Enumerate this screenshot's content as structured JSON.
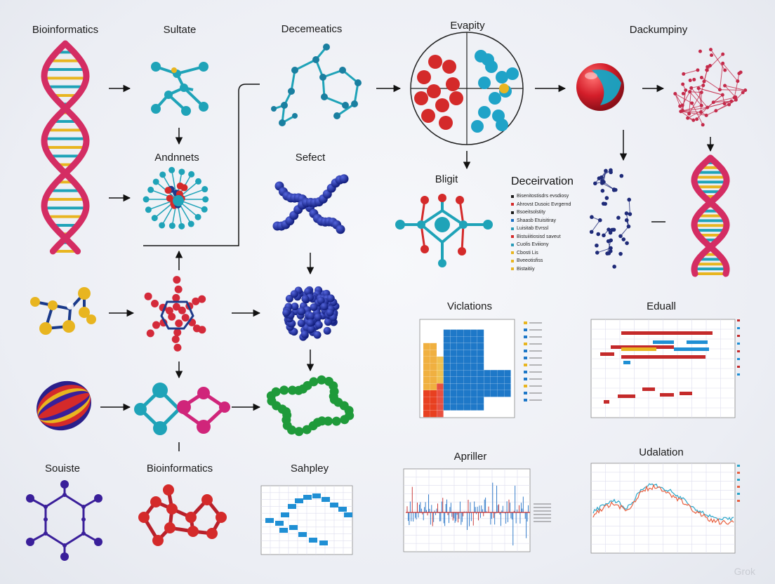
{
  "labels": {
    "bioinformatics_top": "Bioinformatics",
    "sultate": "Sultate",
    "decemeatics": "Decemeatics",
    "evapity": "Evapity",
    "dackumpiny": "Dackumpiny",
    "andnnets": "Andnnets",
    "sefect": "Sefect",
    "bligit": "Bligit",
    "souiste": "Souiste",
    "bioinformatics_bottom": "Bioinformatics",
    "sahpley": "Sahpley",
    "viclations": "Viclations",
    "eduall": "Eduall",
    "apriller": "Apriller",
    "udalation": "Udalation"
  },
  "legend": {
    "title": "Deceirvation",
    "items": [
      {
        "text": "Bisenitostisdrs evsdiosy",
        "color": "#1a1a1a"
      },
      {
        "text": "Ahrovst Dusoic Evrgernd",
        "color": "#d42a2a"
      },
      {
        "text": "Bsoeitsolstity",
        "color": "#1a1a1a"
      },
      {
        "text": "Shaasb Etuisitiray",
        "color": "#1a6fc4"
      },
      {
        "text": "Luisitab Evrssl",
        "color": "#2a9bb8"
      },
      {
        "text": "Bistuiiitiosisd saveut",
        "color": "#d42a2a"
      },
      {
        "text": "Cuolis Eviiiony",
        "color": "#2a9bb8"
      },
      {
        "text": "Cbosti Lis",
        "color": "#e8b520"
      },
      {
        "text": "Bveeotisfiss",
        "color": "#e8b520"
      },
      {
        "text": "Bistaitiiy",
        "color": "#e8b520"
      }
    ]
  },
  "watermark": "Grok",
  "colors": {
    "dna_strand": "#d42d63",
    "red": "#d42a2a",
    "teal": "#1fa3b8",
    "navy": "#1e2a78",
    "blue": "#1e6fc4",
    "green": "#1f9a3a",
    "yellow": "#e8b520",
    "purple": "#3a1f9a"
  }
}
